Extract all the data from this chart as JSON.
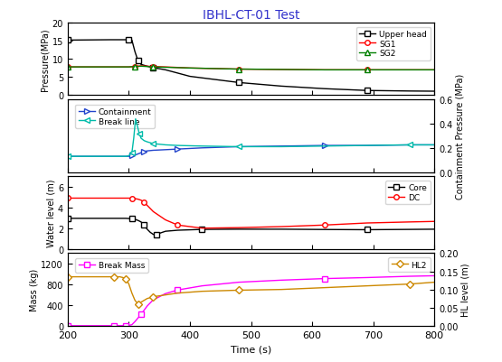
{
  "title": "IBHL-CT-01 Test",
  "title_color": "#3333CC",
  "xlabel": "Time (s)",
  "xmin": 200,
  "xmax": 800,
  "panel1": {
    "ylabel_left": "Pressure(MPa)",
    "ylim_left": [
      0,
      20
    ],
    "yticks_left": [
      0,
      5,
      10,
      15,
      20
    ],
    "upper_head": {
      "x": [
        200,
        270,
        275,
        300,
        305,
        310,
        315,
        320,
        330,
        340,
        360,
        400,
        480,
        550,
        620,
        690,
        760,
        800
      ],
      "y": [
        15.2,
        15.3,
        15.3,
        15.3,
        15.2,
        12.0,
        9.5,
        8.5,
        8.0,
        7.6,
        7.0,
        5.2,
        3.5,
        2.5,
        1.8,
        1.3,
        1.15,
        1.1
      ],
      "color": "black",
      "marker": "s",
      "label": "Upper head"
    },
    "sg1": {
      "x": [
        200,
        270,
        300,
        310,
        320,
        330,
        340,
        360,
        400,
        480,
        550,
        620,
        690,
        760,
        800
      ],
      "y": [
        7.8,
        7.8,
        7.8,
        7.9,
        8.1,
        8.0,
        7.9,
        7.8,
        7.5,
        7.2,
        7.1,
        7.0,
        7.0,
        7.0,
        7.0
      ],
      "color": "red",
      "marker": "o",
      "label": "SG1"
    },
    "sg2": {
      "x": [
        200,
        270,
        300,
        310,
        320,
        330,
        340,
        360,
        400,
        480,
        550,
        620,
        690,
        760,
        800
      ],
      "y": [
        7.8,
        7.8,
        7.8,
        7.9,
        8.0,
        7.9,
        7.8,
        7.7,
        7.5,
        7.2,
        7.1,
        7.0,
        7.0,
        7.0,
        7.0
      ],
      "color": "green",
      "marker": "^",
      "label": "SG2"
    }
  },
  "panel2": {
    "ylabel_right": "Containment Pressure (MPa)",
    "ylim": [
      0.0,
      0.6
    ],
    "yticks": [
      0.0,
      0.2,
      0.4,
      0.6
    ],
    "containment": {
      "x": [
        200,
        270,
        295,
        300,
        305,
        310,
        315,
        320,
        325,
        330,
        340,
        360,
        380,
        420,
        480,
        550,
        620,
        690,
        760,
        800
      ],
      "y": [
        0.13,
        0.13,
        0.13,
        0.13,
        0.135,
        0.14,
        0.15,
        0.16,
        0.17,
        0.175,
        0.18,
        0.185,
        0.19,
        0.2,
        0.21,
        0.215,
        0.22,
        0.22,
        0.225,
        0.225
      ],
      "color": "#2244CC",
      "marker": ">",
      "label": "Containment"
    },
    "break_line": {
      "x": [
        200,
        270,
        295,
        300,
        305,
        308,
        311,
        314,
        317,
        320,
        325,
        330,
        340,
        360,
        380,
        420,
        480,
        550,
        620,
        690,
        760,
        800
      ],
      "y": [
        0.13,
        0.13,
        0.13,
        0.135,
        0.16,
        0.28,
        0.44,
        0.38,
        0.32,
        0.28,
        0.26,
        0.25,
        0.235,
        0.225,
        0.22,
        0.215,
        0.21,
        0.21,
        0.215,
        0.22,
        0.225,
        0.225
      ],
      "color": "#00BBAA",
      "marker": "<",
      "label": "Break line"
    }
  },
  "panel3": {
    "ylabel_left": "Water level (m)",
    "ylim_left": [
      0,
      7
    ],
    "yticks_left": [
      0,
      2,
      4,
      6
    ],
    "core": {
      "x": [
        200,
        270,
        295,
        300,
        305,
        310,
        315,
        320,
        325,
        330,
        335,
        340,
        345,
        350,
        360,
        380,
        420,
        480,
        550,
        620,
        690,
        760,
        800
      ],
      "y": [
        2.95,
        2.95,
        2.95,
        2.93,
        2.9,
        2.85,
        2.75,
        2.6,
        2.3,
        1.9,
        1.6,
        1.4,
        1.35,
        1.5,
        1.7,
        1.8,
        1.88,
        1.9,
        1.9,
        1.87,
        1.85,
        1.88,
        1.9
      ],
      "color": "black",
      "marker": "s",
      "label": "Core"
    },
    "dc": {
      "x": [
        200,
        270,
        295,
        300,
        305,
        310,
        315,
        320,
        325,
        330,
        340,
        360,
        380,
        420,
        480,
        550,
        620,
        690,
        760,
        800
      ],
      "y": [
        4.9,
        4.9,
        4.9,
        4.9,
        4.88,
        4.85,
        4.8,
        4.7,
        4.5,
        4.2,
        3.6,
        2.8,
        2.3,
        2.0,
        2.05,
        2.15,
        2.3,
        2.5,
        2.6,
        2.65
      ],
      "color": "red",
      "marker": "o",
      "label": "DC"
    }
  },
  "panel4": {
    "ylabel_left": "Mass (kg)",
    "ylabel_right": "HL level (m)",
    "ylim_left": [
      0,
      1400
    ],
    "ylim_right": [
      0.0,
      0.2
    ],
    "yticks_left": [
      0,
      400,
      800,
      1200
    ],
    "yticks_right": [
      0.0,
      0.05,
      0.1,
      0.15,
      0.2
    ],
    "break_mass": {
      "x": [
        200,
        265,
        268,
        270,
        275,
        280,
        285,
        290,
        295,
        300,
        305,
        310,
        320,
        330,
        340,
        360,
        380,
        420,
        480,
        550,
        620,
        690,
        760,
        800
      ],
      "y": [
        0,
        0,
        0,
        0,
        0,
        0,
        0,
        0,
        0,
        5,
        20,
        80,
        220,
        380,
        500,
        620,
        690,
        770,
        840,
        880,
        910,
        930,
        955,
        965
      ],
      "color": "magenta",
      "marker": "s",
      "label": "Break Mass"
    },
    "hl2": {
      "x": [
        200,
        265,
        268,
        270,
        275,
        280,
        285,
        290,
        295,
        300,
        305,
        310,
        315,
        320,
        325,
        330,
        340,
        360,
        380,
        420,
        480,
        550,
        620,
        690,
        760,
        800
      ],
      "y": [
        0.135,
        0.135,
        0.135,
        0.135,
        0.135,
        0.135,
        0.135,
        0.133,
        0.13,
        0.115,
        0.09,
        0.07,
        0.06,
        0.065,
        0.07,
        0.075,
        0.08,
        0.085,
        0.09,
        0.095,
        0.098,
        0.1,
        0.105,
        0.11,
        0.115,
        0.12
      ],
      "color": "#CC8800",
      "marker": "D",
      "label": "HL2"
    }
  }
}
